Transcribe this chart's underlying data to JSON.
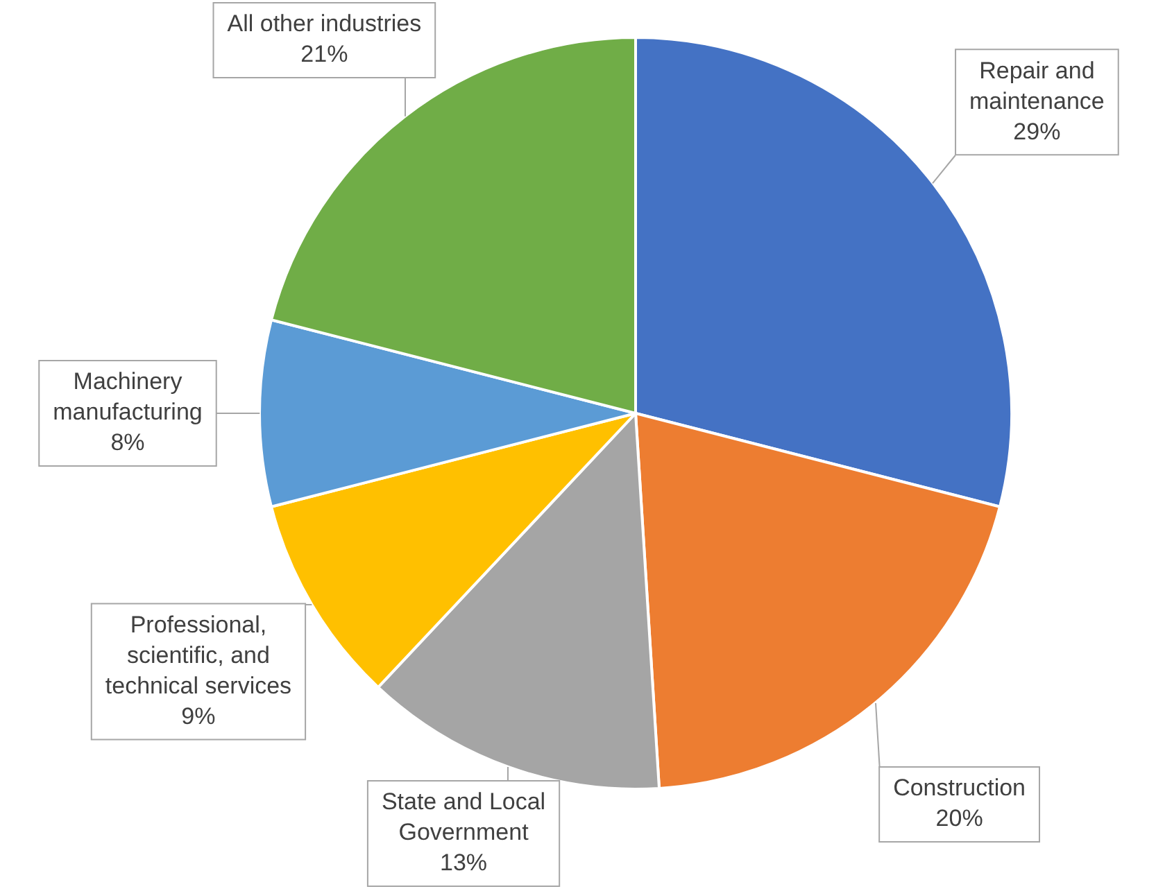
{
  "chart_data": {
    "type": "pie",
    "categories": [
      "Repair and maintenance",
      "Construction",
      "State and Local Government",
      "Professional, scientific, and technical services",
      "Machinery manufacturing",
      "All other industries"
    ],
    "values": [
      29,
      20,
      13,
      9,
      8,
      21
    ],
    "colors": [
      "#4472c4",
      "#ed7d31",
      "#a5a5a5",
      "#ffc000",
      "#5b9bd5",
      "#70ad47"
    ],
    "value_labels": [
      "29%",
      "20%",
      "13%",
      "9%",
      "8%",
      "21%"
    ],
    "legend": false
  }
}
